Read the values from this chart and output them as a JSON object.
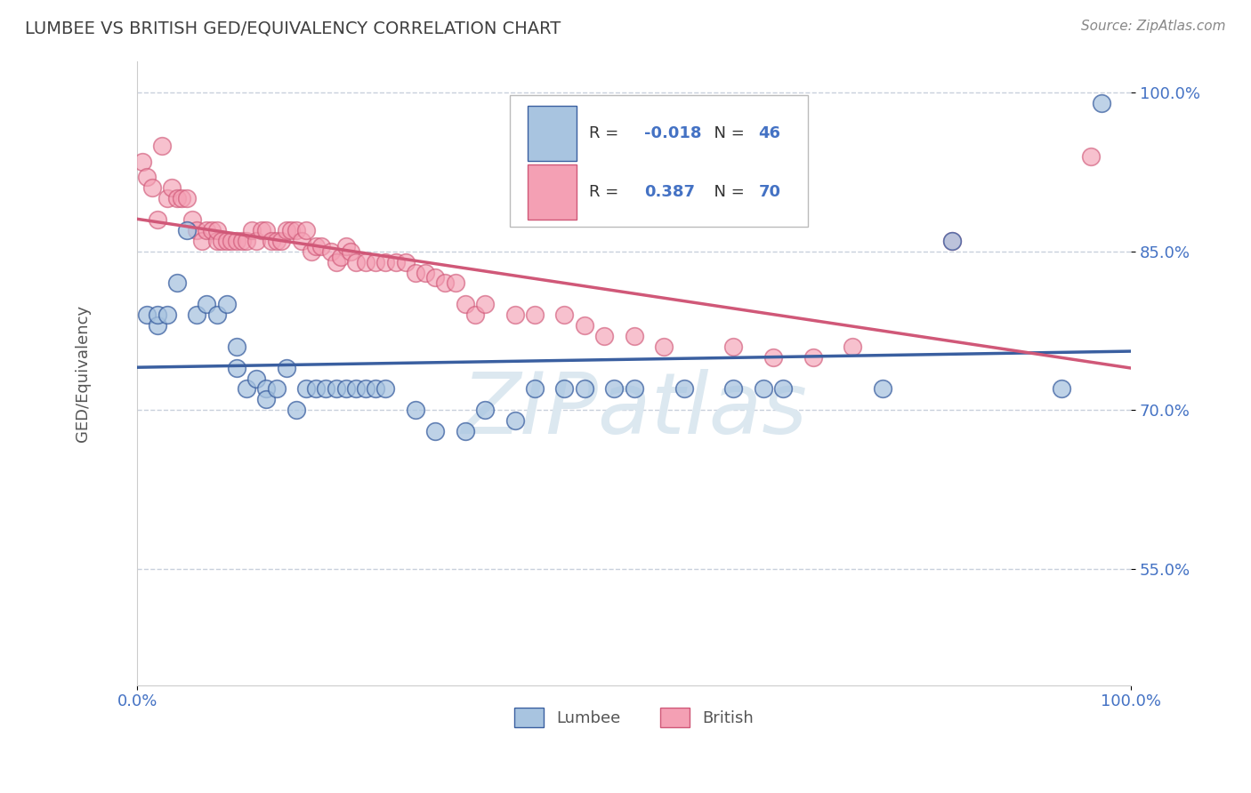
{
  "title": "LUMBEE VS BRITISH GED/EQUIVALENCY CORRELATION CHART",
  "ylabel": "GED/Equivalency",
  "source": "Source: ZipAtlas.com",
  "lumbee_R": -0.018,
  "lumbee_N": 46,
  "british_R": 0.387,
  "british_N": 70,
  "lumbee_color": "#a8c4e0",
  "british_color": "#f4a0b4",
  "lumbee_line_color": "#3a5fa0",
  "british_line_color": "#d05878",
  "title_color": "#404040",
  "axis_label_color": "#555555",
  "tick_color": "#4472c4",
  "grid_color": "#c8d0dc",
  "legend_R_color": "#4472c4",
  "watermark_color": "#dce8f0",
  "xmin": 0.0,
  "xmax": 1.0,
  "ymin": 0.44,
  "ymax": 1.03,
  "yticks": [
    0.55,
    0.7,
    0.85,
    1.0
  ],
  "ytick_labels": [
    "55.0%",
    "70.0%",
    "85.0%",
    "100.0%"
  ],
  "xtick_labels": [
    "0.0%",
    "100.0%"
  ],
  "lumbee_x": [
    0.01,
    0.02,
    0.02,
    0.03,
    0.04,
    0.05,
    0.06,
    0.07,
    0.08,
    0.09,
    0.1,
    0.1,
    0.11,
    0.12,
    0.13,
    0.13,
    0.14,
    0.15,
    0.16,
    0.17,
    0.18,
    0.19,
    0.2,
    0.21,
    0.22,
    0.23,
    0.24,
    0.25,
    0.28,
    0.3,
    0.33,
    0.35,
    0.38,
    0.4,
    0.43,
    0.45,
    0.48,
    0.5,
    0.55,
    0.6,
    0.63,
    0.65,
    0.75,
    0.82,
    0.93,
    0.97
  ],
  "lumbee_y": [
    0.79,
    0.78,
    0.79,
    0.79,
    0.82,
    0.87,
    0.79,
    0.8,
    0.79,
    0.8,
    0.76,
    0.74,
    0.72,
    0.73,
    0.72,
    0.71,
    0.72,
    0.74,
    0.7,
    0.72,
    0.72,
    0.72,
    0.72,
    0.72,
    0.72,
    0.72,
    0.72,
    0.72,
    0.7,
    0.68,
    0.68,
    0.7,
    0.69,
    0.72,
    0.72,
    0.72,
    0.72,
    0.72,
    0.72,
    0.72,
    0.72,
    0.72,
    0.72,
    0.86,
    0.72,
    0.99
  ],
  "british_x": [
    0.005,
    0.01,
    0.015,
    0.02,
    0.025,
    0.03,
    0.035,
    0.04,
    0.045,
    0.05,
    0.055,
    0.06,
    0.065,
    0.07,
    0.075,
    0.08,
    0.08,
    0.085,
    0.09,
    0.095,
    0.1,
    0.105,
    0.11,
    0.115,
    0.12,
    0.125,
    0.13,
    0.135,
    0.14,
    0.145,
    0.15,
    0.155,
    0.16,
    0.165,
    0.17,
    0.175,
    0.18,
    0.185,
    0.195,
    0.2,
    0.205,
    0.21,
    0.215,
    0.22,
    0.23,
    0.24,
    0.25,
    0.26,
    0.27,
    0.28,
    0.29,
    0.3,
    0.31,
    0.32,
    0.33,
    0.34,
    0.35,
    0.38,
    0.4,
    0.43,
    0.45,
    0.47,
    0.5,
    0.53,
    0.6,
    0.64,
    0.68,
    0.72,
    0.82,
    0.96
  ],
  "british_y": [
    0.935,
    0.92,
    0.91,
    0.88,
    0.95,
    0.9,
    0.91,
    0.9,
    0.9,
    0.9,
    0.88,
    0.87,
    0.86,
    0.87,
    0.87,
    0.86,
    0.87,
    0.86,
    0.86,
    0.86,
    0.86,
    0.86,
    0.86,
    0.87,
    0.86,
    0.87,
    0.87,
    0.86,
    0.86,
    0.86,
    0.87,
    0.87,
    0.87,
    0.86,
    0.87,
    0.85,
    0.855,
    0.855,
    0.85,
    0.84,
    0.845,
    0.855,
    0.85,
    0.84,
    0.84,
    0.84,
    0.84,
    0.84,
    0.84,
    0.83,
    0.83,
    0.825,
    0.82,
    0.82,
    0.8,
    0.79,
    0.8,
    0.79,
    0.79,
    0.79,
    0.78,
    0.77,
    0.77,
    0.76,
    0.76,
    0.75,
    0.75,
    0.76,
    0.86,
    0.94
  ],
  "watermark": "ZIPatlas",
  "background_color": "#ffffff",
  "figsize": [
    14.06,
    8.92
  ],
  "dpi": 100
}
